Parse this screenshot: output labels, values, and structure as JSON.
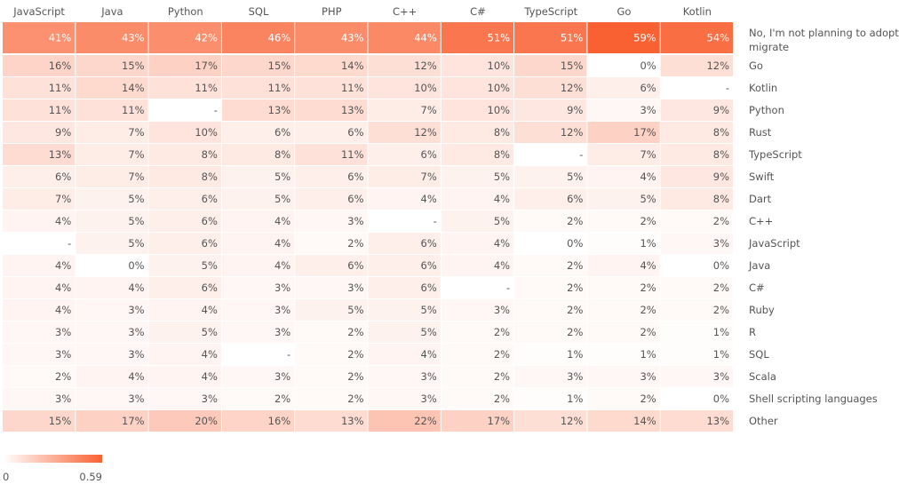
{
  "chart_data": {
    "type": "heatmap",
    "columns": [
      "JavaScript",
      "Java",
      "Python",
      "SQL",
      "PHP",
      "C++",
      "C#",
      "TypeScript",
      "Go",
      "Kotlin"
    ],
    "rows": [
      {
        "label": "No, I'm not planning to adopt / migrate",
        "values": [
          41,
          43,
          42,
          46,
          43,
          44,
          51,
          51,
          59,
          54
        ]
      },
      {
        "label": "Go",
        "values": [
          16,
          15,
          17,
          15,
          14,
          12,
          10,
          15,
          0,
          12
        ]
      },
      {
        "label": "Kotlin",
        "values": [
          11,
          14,
          11,
          11,
          11,
          10,
          10,
          12,
          6,
          null
        ]
      },
      {
        "label": "Python",
        "values": [
          11,
          11,
          null,
          13,
          13,
          7,
          10,
          9,
          3,
          9
        ]
      },
      {
        "label": "Rust",
        "values": [
          9,
          7,
          10,
          6,
          6,
          12,
          8,
          12,
          17,
          8
        ]
      },
      {
        "label": "TypeScript",
        "values": [
          13,
          7,
          8,
          8,
          11,
          6,
          8,
          null,
          7,
          8
        ]
      },
      {
        "label": "Swift",
        "values": [
          6,
          7,
          8,
          5,
          6,
          7,
          5,
          5,
          4,
          9
        ]
      },
      {
        "label": "Dart",
        "values": [
          7,
          5,
          6,
          5,
          6,
          4,
          4,
          6,
          5,
          8
        ]
      },
      {
        "label": "C++",
        "values": [
          4,
          5,
          6,
          4,
          3,
          null,
          5,
          2,
          2,
          2
        ]
      },
      {
        "label": "JavaScript",
        "values": [
          null,
          5,
          6,
          4,
          2,
          6,
          4,
          0,
          1,
          3
        ]
      },
      {
        "label": "Java",
        "values": [
          4,
          0,
          5,
          4,
          6,
          6,
          4,
          2,
          4,
          0
        ]
      },
      {
        "label": "C#",
        "values": [
          4,
          4,
          6,
          3,
          3,
          6,
          null,
          2,
          2,
          2
        ]
      },
      {
        "label": "Ruby",
        "values": [
          4,
          3,
          4,
          3,
          5,
          5,
          3,
          2,
          2,
          2
        ]
      },
      {
        "label": "R",
        "values": [
          3,
          3,
          5,
          3,
          2,
          5,
          2,
          2,
          2,
          1
        ]
      },
      {
        "label": "SQL",
        "values": [
          3,
          3,
          4,
          null,
          2,
          4,
          2,
          1,
          1,
          1
        ]
      },
      {
        "label": "Scala",
        "values": [
          2,
          4,
          4,
          3,
          2,
          3,
          2,
          3,
          3,
          3
        ]
      },
      {
        "label": "Shell scripting languages",
        "values": [
          3,
          3,
          3,
          2,
          2,
          3,
          2,
          1,
          2,
          0
        ]
      },
      {
        "label": "Other",
        "values": [
          15,
          17,
          20,
          16,
          13,
          22,
          17,
          12,
          14,
          13
        ]
      }
    ],
    "value_suffix": "%",
    "missing_label": "-",
    "color_scale": {
      "min": 0,
      "max": 0.59,
      "min_label": "0",
      "max_label": "0.59",
      "min_color": "#ffffff",
      "max_color": "#f96132"
    }
  }
}
